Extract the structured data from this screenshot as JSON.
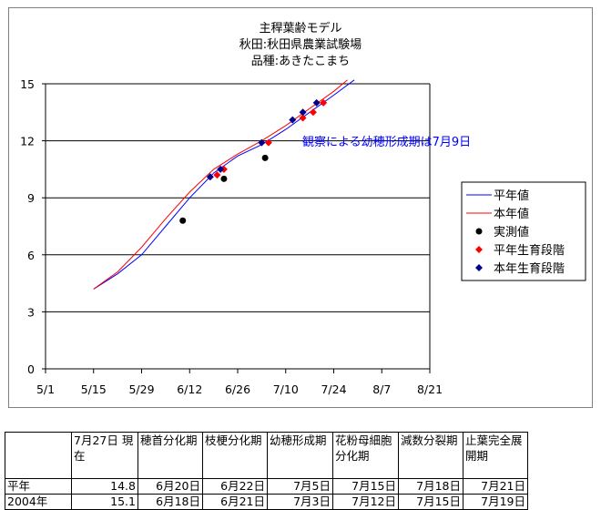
{
  "chart_data": {
    "type": "line",
    "title": [
      "主稈葉齢モデル",
      "秋田:秋田県農業試験場",
      "品種:あきたこまち"
    ],
    "x_ticks": [
      "5/1",
      "5/15",
      "5/29",
      "6/12",
      "6/26",
      "7/10",
      "7/24",
      "8/7",
      "8/21"
    ],
    "y_ticks": [
      "0",
      "3",
      "6",
      "9",
      "12",
      "15"
    ],
    "xlim": [
      "5/1",
      "8/21"
    ],
    "ylim": [
      0,
      15
    ],
    "grid": "horizontal",
    "legend_position": "right",
    "annotation": "観察による幼穂形成期は7月9日",
    "series": [
      {
        "name": "平年値",
        "kind": "line",
        "color": "#0000ff",
        "points": [
          [
            "5/15",
            4.2
          ],
          [
            "5/22",
            5.0
          ],
          [
            "5/29",
            6.0
          ],
          [
            "6/5",
            7.5
          ],
          [
            "6/12",
            9.0
          ],
          [
            "6/19",
            10.3
          ],
          [
            "6/26",
            11.2
          ],
          [
            "7/3",
            11.8
          ],
          [
            "7/10",
            12.6
          ],
          [
            "7/17",
            13.5
          ],
          [
            "7/24",
            14.4
          ],
          [
            "7/30",
            15.2
          ]
        ]
      },
      {
        "name": "本年値",
        "kind": "line",
        "color": "#ff0000",
        "points": [
          [
            "5/15",
            4.2
          ],
          [
            "5/22",
            5.1
          ],
          [
            "5/29",
            6.4
          ],
          [
            "6/5",
            7.9
          ],
          [
            "6/12",
            9.3
          ],
          [
            "6/19",
            10.5
          ],
          [
            "6/26",
            11.3
          ],
          [
            "7/3",
            12.0
          ],
          [
            "7/10",
            12.8
          ],
          [
            "7/17",
            13.7
          ],
          [
            "7/24",
            14.6
          ],
          [
            "7/28",
            15.2
          ]
        ]
      },
      {
        "name": "実測値",
        "kind": "marker",
        "marker": "circle",
        "color": "#000000",
        "points": [
          [
            "6/10",
            7.8
          ],
          [
            "6/22",
            10.0
          ],
          [
            "7/4",
            11.1
          ]
        ]
      },
      {
        "name": "平年生育段階",
        "kind": "marker",
        "marker": "diamond",
        "color": "#ff0000",
        "points": [
          [
            "6/20",
            10.2
          ],
          [
            "6/22",
            10.5
          ],
          [
            "7/5",
            11.9
          ],
          [
            "7/15",
            13.2
          ],
          [
            "7/18",
            13.5
          ],
          [
            "7/21",
            14.0
          ]
        ]
      },
      {
        "name": "本年生育段階",
        "kind": "marker",
        "marker": "diamond",
        "color": "#00008b",
        "points": [
          [
            "6/18",
            10.1
          ],
          [
            "6/21",
            10.5
          ],
          [
            "7/3",
            11.9
          ],
          [
            "7/12",
            13.1
          ],
          [
            "7/15",
            13.5
          ],
          [
            "7/19",
            14.0
          ]
        ]
      }
    ]
  },
  "table": {
    "headers": [
      "",
      "7月27日 現在",
      "穂首分化期",
      "枝梗分化期",
      "幼穂形成期",
      "花粉母細胞分化期",
      "減数分裂期",
      "止葉完全展開期"
    ],
    "rows": [
      [
        "平年",
        "14.8",
        "6月20日",
        "6月22日",
        "7月5日",
        "7月15日",
        "7月18日",
        "7月21日"
      ],
      [
        "2004年",
        "15.1",
        "6月18日",
        "6月21日",
        "7月3日",
        "7月12日",
        "7月15日",
        "7月19日"
      ]
    ]
  }
}
